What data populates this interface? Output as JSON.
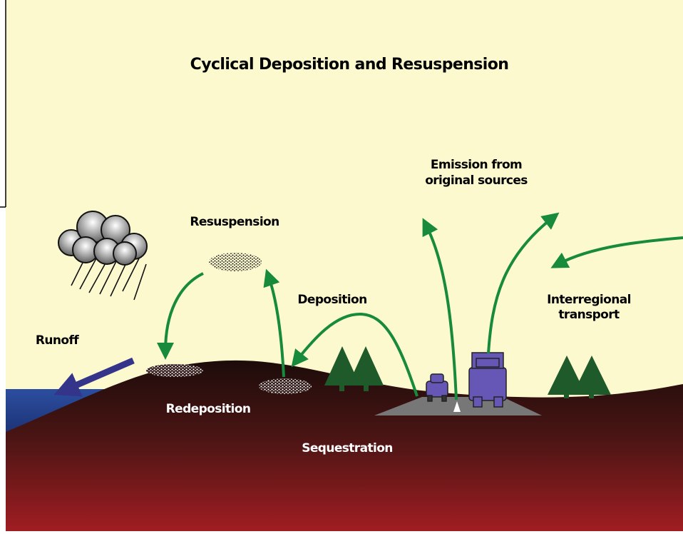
{
  "title": "Cyclical Deposition and Resuspension",
  "labels": {
    "emission": [
      "Emission from",
      "original sources"
    ],
    "resuspension": [
      "Resuspension"
    ],
    "deposition": [
      "Deposition"
    ],
    "interregional": [
      "Interregional",
      "transport"
    ],
    "runoff": [
      "Runoff"
    ],
    "redeposition": [
      "Redeposition"
    ],
    "sequestration": [
      "Sequestration"
    ]
  }
}
